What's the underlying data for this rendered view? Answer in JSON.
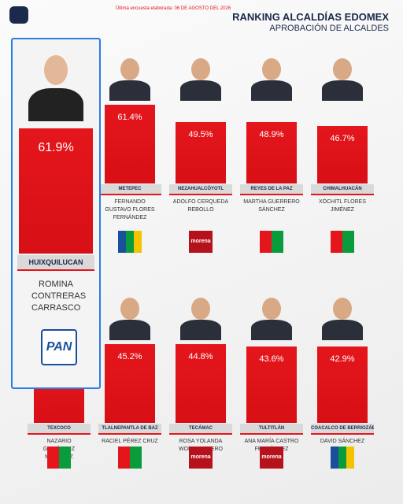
{
  "header": {
    "note": "Última encuesta elaborada: 06 DE AGOSTO DEL 2026",
    "title": "RANKING ALCALDÍAS EDOMEX",
    "subtitle": "APROBACIÓN DE ALCALDES"
  },
  "featured": {
    "value": "61.9%",
    "municipality": "HUIXQUILUCAN",
    "name": "ROMINA CONTRERAS CARRASCO",
    "party": "PAN"
  },
  "ranking": [
    {
      "value": "61.4%",
      "municipality": "METEPEC",
      "name": "FERNANDO GUSTAVO FLORES FERNÁNDEZ"
    },
    {
      "value": "49.5%",
      "municipality": "NEZAHUALCÓYOTL",
      "name": "ADOLFO CERQUEDA REBOLLO",
      "party": "morena"
    },
    {
      "value": "48.9%",
      "municipality": "REYES DE LA PAZ",
      "name": "MARTHA GUERRERO SÁNCHEZ"
    },
    {
      "value": "46.7%",
      "municipality": "CHIMALHUACÁN",
      "name": "XÓCHITL FLORES JIMÉNEZ"
    },
    {
      "municipality": "TEXCOCO",
      "name": "NAZARIO GUTIÉRREZ MARTÍNEZ"
    },
    {
      "value": "45.2%",
      "municipality": "TLALNEPANTLA DE BAZ",
      "name": "RACIEL PÉREZ CRUZ"
    },
    {
      "value": "44.8%",
      "municipality": "TECÁMAC",
      "name": "ROSA YOLANDA WONG ROMERO",
      "party": "morena"
    },
    {
      "value": "43.6%",
      "municipality": "TULTITLÁN",
      "name": "ANA MARÍA CASTRO FERNÁNDEZ",
      "party": "morena"
    },
    {
      "value": "42.9%",
      "municipality": "COACALCO DE BERRIOZÁBAL",
      "name": "DAVID SÁNCHEZ ISIDORO"
    }
  ]
}
